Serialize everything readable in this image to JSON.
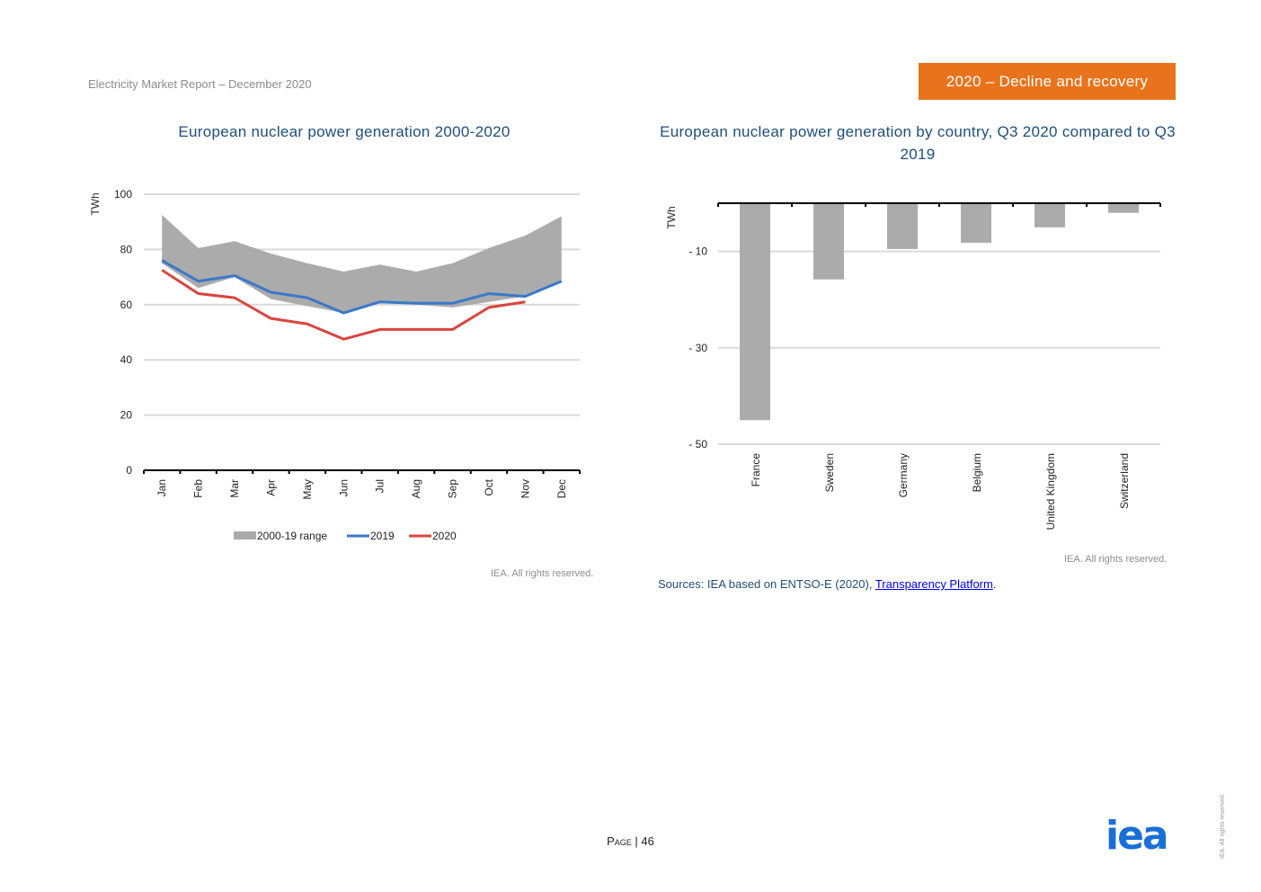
{
  "header": {
    "report_title": "Electricity Market Report – December 2020",
    "section_badge": "2020 – Decline and recovery"
  },
  "chart_data": [
    {
      "type": "area",
      "title": "European nuclear power generation 2000-2020",
      "ylabel": "TWh",
      "ylim": [
        0,
        100
      ],
      "yticks": [
        0,
        20,
        40,
        60,
        80,
        100
      ],
      "grid": true,
      "legend_position": "bottom",
      "categories": [
        "Jan",
        "Feb",
        "Mar",
        "Apr",
        "May",
        "Jun",
        "Jul",
        "Aug",
        "Sep",
        "Oct",
        "Nov",
        "Dec"
      ],
      "range": {
        "name": "2000-19 range",
        "color": "#ababab",
        "min": [
          75,
          66,
          70,
          62,
          59.5,
          57,
          60.5,
          60,
          59,
          61,
          63,
          69
        ],
        "max": [
          92.5,
          80.5,
          83,
          78.5,
          75,
          72,
          74.5,
          72,
          75,
          80.5,
          85,
          92
        ]
      },
      "series": [
        {
          "name": "2019",
          "color": "#3a78c9",
          "values": [
            76,
            68.5,
            70.5,
            64.5,
            62.5,
            57,
            61,
            60.5,
            60.5,
            64,
            63,
            68.5
          ]
        },
        {
          "name": "2020",
          "color": "#d9453f",
          "values": [
            72.5,
            64,
            62.5,
            55,
            53,
            47.5,
            51,
            51,
            51,
            59,
            61,
            null
          ]
        }
      ],
      "rights": "IEA. All rights reserved."
    },
    {
      "type": "bar",
      "title": "European nuclear power generation by country, Q3 2020 compared to Q3 2019",
      "ylabel": "TWh",
      "ylim": [
        -50,
        0
      ],
      "yticks": [
        -10,
        -30,
        -50
      ],
      "ytick_labels": [
        "- 10",
        "- 30",
        "- 50"
      ],
      "grid": true,
      "bar_color": "#ababab",
      "categories": [
        "France",
        "Sweden",
        "Germany",
        "Belgium",
        "United Kingdom",
        "Switzerland"
      ],
      "values": [
        -45,
        -15.8,
        -9.5,
        -8.2,
        -5,
        -2
      ],
      "rights": "IEA. All rights reserved."
    }
  ],
  "sources": {
    "prefix": "Sources: IEA based on ENTSO-E (2020), ",
    "link": "Transparency Platform",
    "suffix": "."
  },
  "footer": {
    "page_word": "Page",
    "page_number": "| 46",
    "logo_text": "iea",
    "side_rights": "IEA. All rights reserved."
  }
}
